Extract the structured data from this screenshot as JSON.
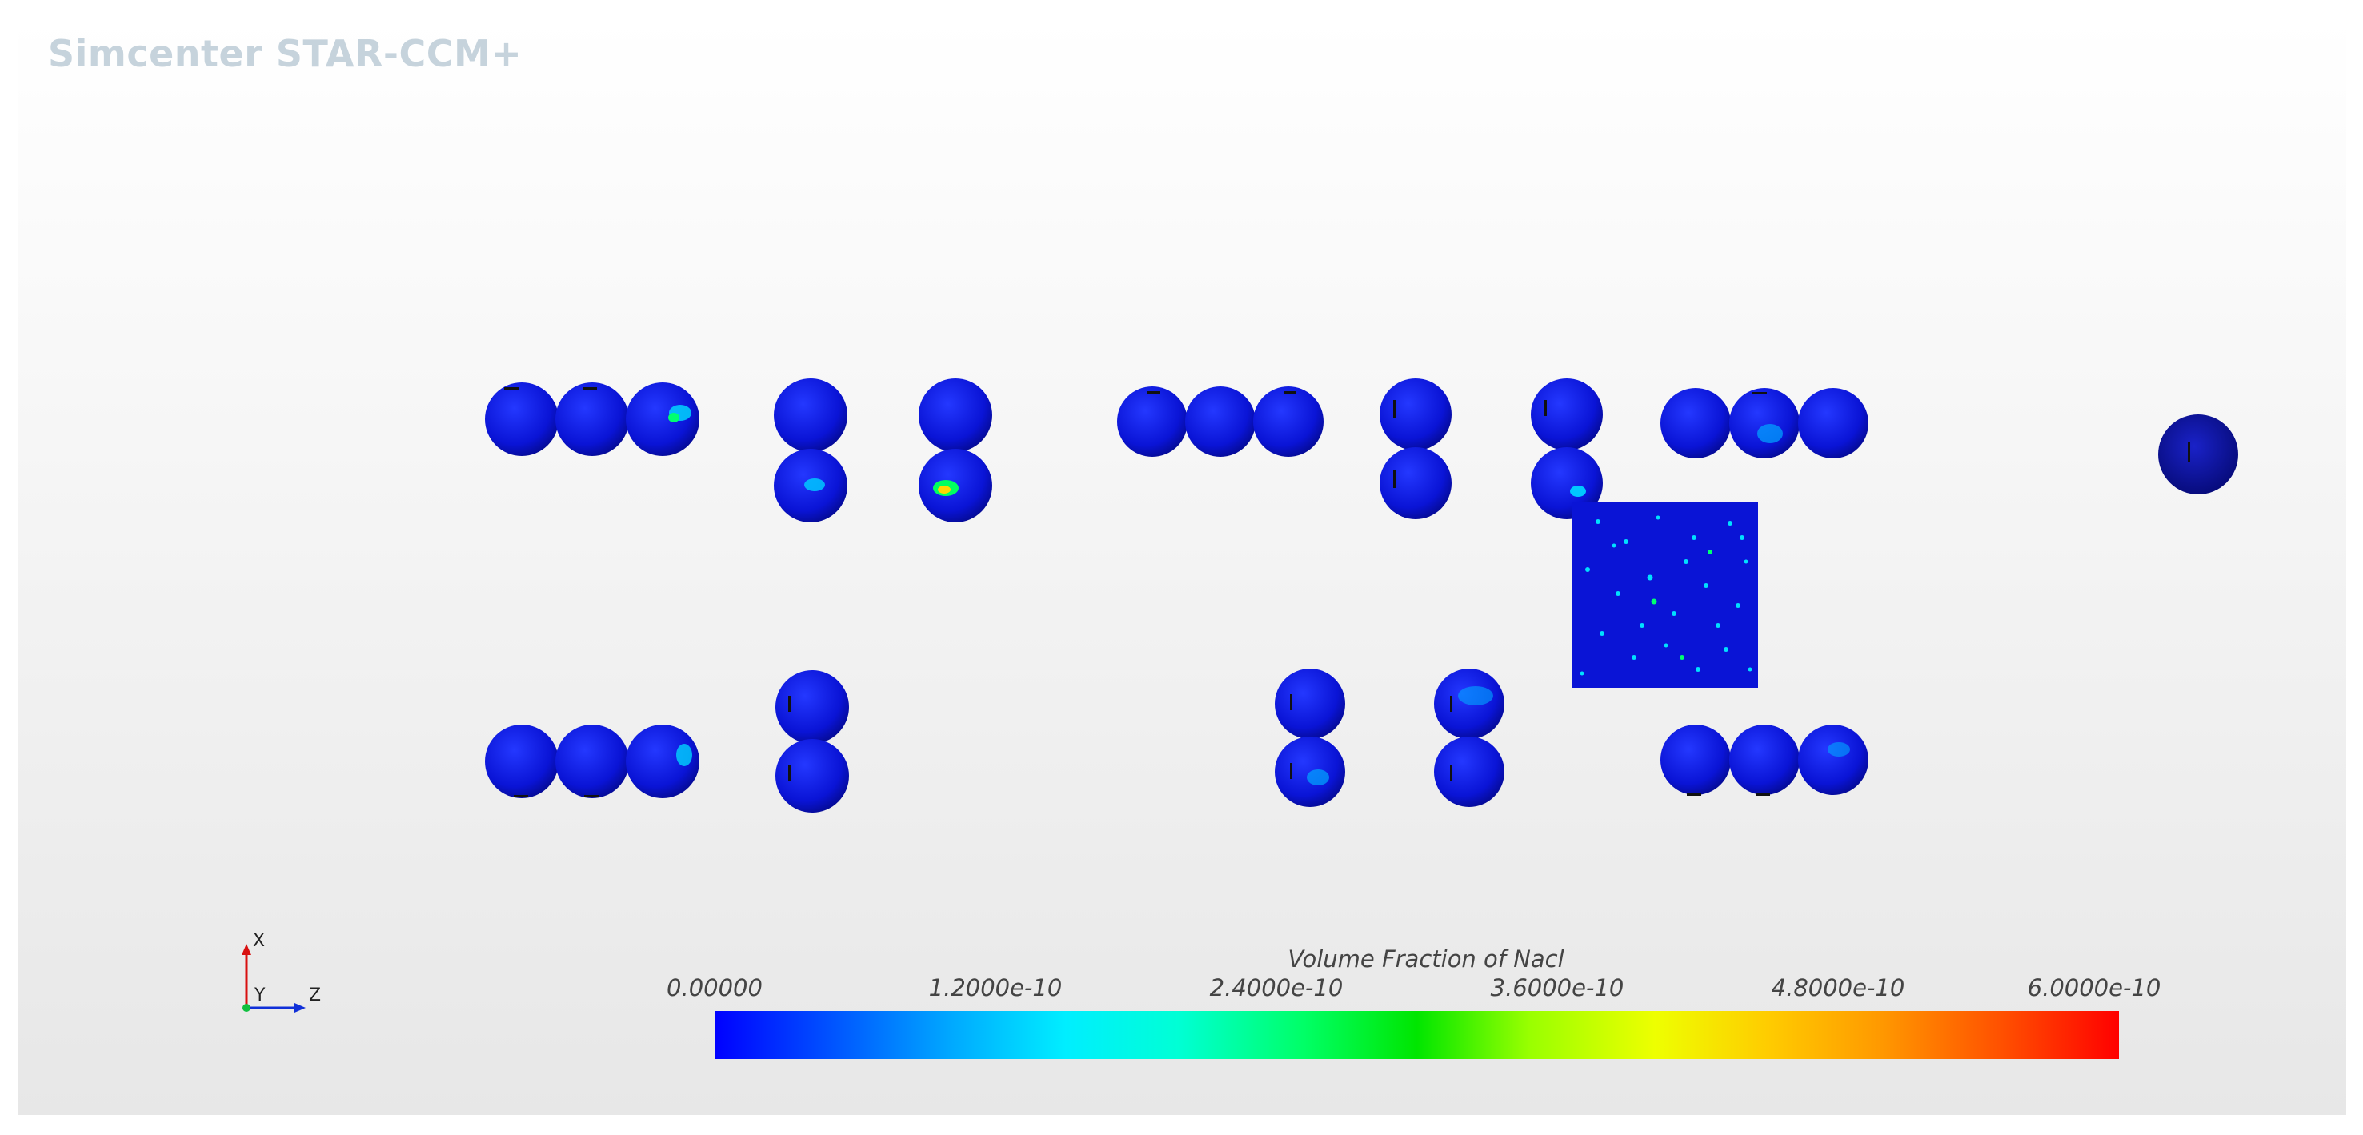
{
  "viewport": {
    "brand_label": "Simcenter STAR-CCM+"
  },
  "scene": {
    "field_colors": {
      "low": "#0a14d6",
      "mid": "#00e0ff",
      "high": "#00ff40"
    }
  },
  "triad": {
    "x_label": "X",
    "y_label": "Y",
    "z_label": "Z"
  },
  "legend": {
    "title": "Volume Fraction of Nacl",
    "ticks": [
      "0.00000",
      "1.2000e-10",
      "2.4000e-10",
      "3.6000e-10",
      "4.8000e-10",
      "6.0000e-10"
    ]
  }
}
